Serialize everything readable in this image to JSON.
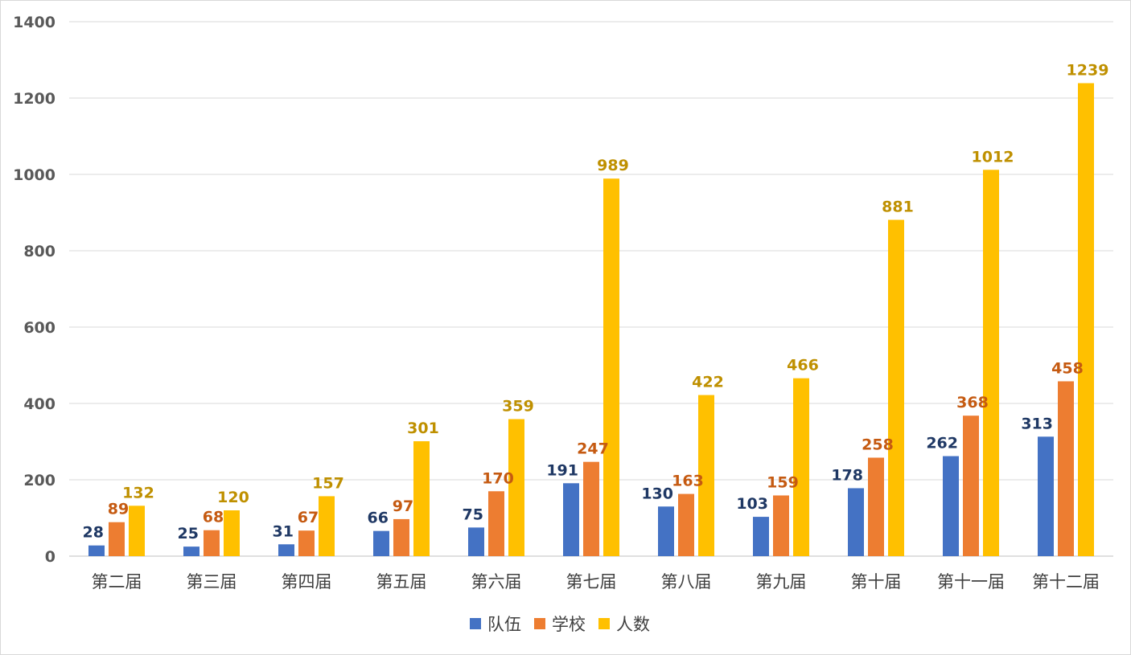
{
  "chart_data": {
    "type": "bar",
    "categories": [
      "第二届",
      "第三届",
      "第四届",
      "第五届",
      "第六届",
      "第七届",
      "第八届",
      "第九届",
      "第十届",
      "第十一届",
      "第十二届"
    ],
    "series": [
      {
        "name": "队伍",
        "color": "#4472C4",
        "label_color": "#1F3864",
        "values": [
          28,
          25,
          31,
          66,
          75,
          191,
          130,
          103,
          178,
          262,
          313
        ]
      },
      {
        "name": "学校",
        "color": "#ED7D31",
        "label_color": "#C55A11",
        "values": [
          89,
          68,
          67,
          97,
          170,
          247,
          163,
          159,
          258,
          368,
          458
        ]
      },
      {
        "name": "人数",
        "color": "#FFC000",
        "label_color": "#BF9000",
        "values": [
          132,
          120,
          157,
          301,
          359,
          989,
          422,
          466,
          881,
          1012,
          1239
        ]
      }
    ],
    "ylim": [
      0,
      1400
    ],
    "yticks": [
      0,
      200,
      400,
      600,
      800,
      1000,
      1200,
      1400
    ],
    "grid": true,
    "legend": "bottom",
    "title": "",
    "xlabel": "",
    "ylabel": ""
  }
}
